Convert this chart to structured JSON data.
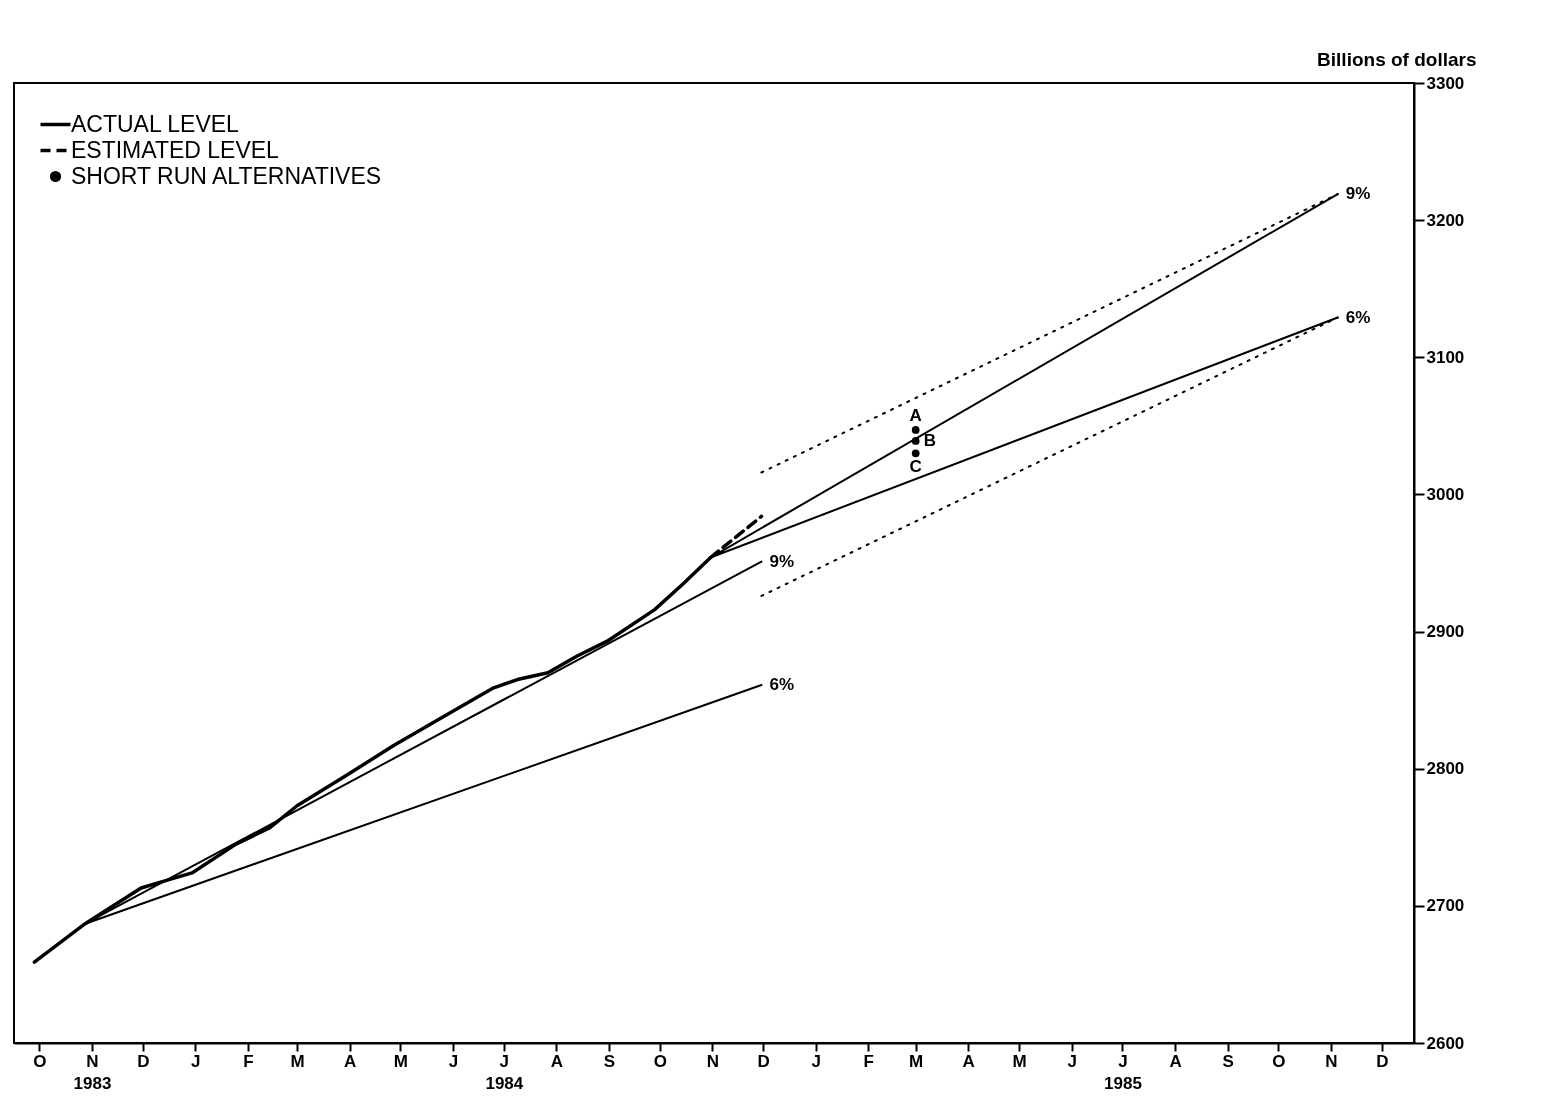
{
  "chart_data": {
    "type": "line",
    "ylabel": "Billions of dollars",
    "legend": "top left",
    "grid": false,
    "xlim": [
      "1983-10-01",
      "1986-01-04"
    ],
    "ylim": [
      2600,
      3300
    ],
    "yticks": [
      2600,
      2700,
      2800,
      2900,
      3000,
      3100,
      3200,
      3300
    ],
    "xticks": [
      {
        "value": "1983-10-16",
        "label": "O"
      },
      {
        "value": "1983-11-16",
        "label": "N\n1983"
      },
      {
        "value": "1983-12-16",
        "label": "D"
      },
      {
        "value": "1984-01-16",
        "label": "J"
      },
      {
        "value": "1984-02-16",
        "label": "F"
      },
      {
        "value": "1984-03-16",
        "label": "M"
      },
      {
        "value": "1984-04-16",
        "label": "A"
      },
      {
        "value": "1984-05-16",
        "label": "M"
      },
      {
        "value": "1984-06-16",
        "label": "J"
      },
      {
        "value": "1984-07-16",
        "label": "J\n1984"
      },
      {
        "value": "1984-08-16",
        "label": "A"
      },
      {
        "value": "1984-09-16",
        "label": "S"
      },
      {
        "value": "1984-10-16",
        "label": "O"
      },
      {
        "value": "1984-11-16",
        "label": "N"
      },
      {
        "value": "1984-12-16",
        "label": "D"
      },
      {
        "value": "1985-01-16",
        "label": "J"
      },
      {
        "value": "1985-02-16",
        "label": "F"
      },
      {
        "value": "1985-03-16",
        "label": "M"
      },
      {
        "value": "1985-04-16",
        "label": "A"
      },
      {
        "value": "1985-05-16",
        "label": "M"
      },
      {
        "value": "1985-06-16",
        "label": "J"
      },
      {
        "value": "1985-07-16",
        "label": "J\n1985"
      },
      {
        "value": "1985-08-16",
        "label": "A"
      },
      {
        "value": "1985-09-16",
        "label": "S"
      },
      {
        "value": "1985-10-16",
        "label": "O"
      },
      {
        "value": "1985-11-16",
        "label": "N"
      },
      {
        "value": "1985-12-16",
        "label": "D"
      }
    ],
    "series": [
      {
        "name": "ACTUAL LEVEL",
        "color": "#000000",
        "line_style": "solid",
        "x": [
          "1983-10-13",
          "1983-11-12",
          "1983-11-26",
          "1983-12-15",
          "1983-12-31",
          "1984-01-14",
          "1984-02-09",
          "1984-02-29",
          "1984-03-16",
          "1984-04-14",
          "1984-05-12",
          "1984-06-09",
          "1984-07-10",
          "1984-07-24",
          "1984-08-11",
          "1984-08-28",
          "1984-09-15",
          "1984-10-13",
          "1984-10-30",
          "1984-11-15"
        ],
        "values": [
          2659,
          2687,
          2698,
          2713,
          2719,
          2724,
          2745,
          2757,
          2773,
          2795,
          2817,
          2837,
          2859,
          2865,
          2870,
          2882,
          2893,
          2916,
          2935,
          2954
        ]
      },
      {
        "name": "ESTIMATED LEVEL",
        "color": "#000000",
        "line_style": "dashed",
        "x": [
          "1984-11-15",
          "1984-12-15"
        ],
        "values": [
          2954,
          2984
        ]
      },
      {
        "name": "SHORT RUN ALTERNATIVES",
        "type": "scatter",
        "marker": "circle",
        "color": "#000000",
        "x": [
          "1985-03-16",
          "1985-03-16",
          "1985-03-16"
        ],
        "values": [
          3047,
          3039,
          3030
        ]
      },
      {
        "color": "#000000",
        "line_style": "solid",
        "x": [
          "1984-12-15",
          "1983-11-12",
          "1984-12-15"
        ],
        "values": [
          2951,
          2687,
          2861
        ]
      },
      {
        "color": "#000000",
        "line_style": "solid",
        "x": [
          "1985-11-20",
          "1984-11-15",
          "1985-11-20"
        ],
        "values": [
          3219,
          2954,
          3129
        ]
      },
      {
        "color": "#000000",
        "line_style": "dotted",
        "x": [
          "1984-12-15",
          "1985-11-20"
        ],
        "values": [
          3016,
          3219
        ]
      },
      {
        "color": "#000000",
        "line_style": "dotted",
        "x": [
          "1984-12-15",
          "1985-11-20"
        ],
        "values": [
          2926,
          3129
        ]
      }
    ],
    "annotations": [
      {
        "text": "9%",
        "x": "1985-11-20",
        "y": 3219
      },
      {
        "text": "6%",
        "x": "1985-11-20",
        "y": 3129
      },
      {
        "text": "9%",
        "x": "1984-12-15",
        "y": 2951
      },
      {
        "text": "6%",
        "x": "1984-12-15",
        "y": 2861
      },
      {
        "text": "A",
        "x": "1985-03-16",
        "y": 3047
      },
      {
        "text": "B",
        "x": "1985-03-16",
        "y": 3039
      },
      {
        "text": "C",
        "x": "1985-03-16",
        "y": 3030
      }
    ]
  }
}
